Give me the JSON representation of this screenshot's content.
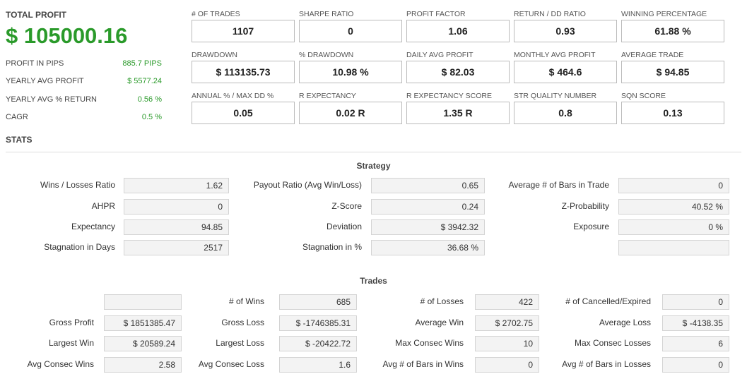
{
  "summary": {
    "title": "TOTAL PROFIT",
    "total": "$ 105000.16",
    "rows": [
      {
        "label": "PROFIT IN PIPS",
        "value": "885.7 PIPS"
      },
      {
        "label": "YEARLY AVG PROFIT",
        "value": "$ 5577.24"
      },
      {
        "label": "YEARLY AVG % RETURN",
        "value": "0.56 %"
      },
      {
        "label": "CAGR",
        "value": "0.5 %"
      }
    ]
  },
  "metrics": [
    [
      {
        "label": "# OF TRADES",
        "value": "1107"
      },
      {
        "label": "SHARPE RATIO",
        "value": "0"
      },
      {
        "label": "PROFIT FACTOR",
        "value": "1.06"
      },
      {
        "label": "RETURN / DD RATIO",
        "value": "0.93"
      },
      {
        "label": "WINNING PERCENTAGE",
        "value": "61.88 %"
      }
    ],
    [
      {
        "label": "DRAWDOWN",
        "value": "$ 113135.73"
      },
      {
        "label": "% DRAWDOWN",
        "value": "10.98 %"
      },
      {
        "label": "DAILY AVG PROFIT",
        "value": "$ 82.03"
      },
      {
        "label": "MONTHLY AVG PROFIT",
        "value": "$ 464.6"
      },
      {
        "label": "AVERAGE TRADE",
        "value": "$ 94.85"
      }
    ],
    [
      {
        "label": "ANNUAL % / MAX DD %",
        "value": "0.05"
      },
      {
        "label": "R EXPECTANCY",
        "value": "0.02 R"
      },
      {
        "label": "R EXPECTANCY SCORE",
        "value": "1.35 R"
      },
      {
        "label": "STR QUALITY NUMBER",
        "value": "0.8"
      },
      {
        "label": "SQN SCORE",
        "value": "0.13"
      }
    ]
  ],
  "stats_heading": "STATS",
  "strategy": {
    "title": "Strategy",
    "rows": [
      [
        {
          "label": "Wins / Losses Ratio",
          "value": "1.62"
        },
        {
          "label": "Payout Ratio (Avg Win/Loss)",
          "value": "0.65"
        },
        {
          "label": "Average # of Bars in Trade",
          "value": "0"
        }
      ],
      [
        {
          "label": "AHPR",
          "value": "0"
        },
        {
          "label": "Z-Score",
          "value": "0.24"
        },
        {
          "label": "Z-Probability",
          "value": "40.52 %"
        }
      ],
      [
        {
          "label": "Expectancy",
          "value": "94.85"
        },
        {
          "label": "Deviation",
          "value": "$ 3942.32"
        },
        {
          "label": "Exposure",
          "value": "0 %"
        }
      ],
      [
        {
          "label": "Stagnation in Days",
          "value": "2517"
        },
        {
          "label": "Stagnation in %",
          "value": "36.68 %"
        },
        {
          "label": null,
          "value": null
        }
      ]
    ]
  },
  "trades": {
    "title": "Trades",
    "rows": [
      [
        {
          "label": null,
          "value": null
        },
        {
          "label": "# of Wins",
          "value": "685"
        },
        {
          "label": "# of Losses",
          "value": "422"
        },
        {
          "label": "# of Cancelled/Expired",
          "value": "0"
        }
      ],
      [
        {
          "label": "Gross Profit",
          "value": "$ 1851385.47"
        },
        {
          "label": "Gross Loss",
          "value": "$ -1746385.31"
        },
        {
          "label": "Average Win",
          "value": "$ 2702.75"
        },
        {
          "label": "Average Loss",
          "value": "$ -4138.35"
        }
      ],
      [
        {
          "label": "Largest Win",
          "value": "$ 20589.24"
        },
        {
          "label": "Largest Loss",
          "value": "$ -20422.72"
        },
        {
          "label": "Max Consec Wins",
          "value": "10"
        },
        {
          "label": "Max Consec Losses",
          "value": "6"
        }
      ],
      [
        {
          "label": "Avg Consec Wins",
          "value": "2.58"
        },
        {
          "label": "Avg Consec Loss",
          "value": "1.6"
        },
        {
          "label": "Avg # of Bars in Wins",
          "value": "0"
        },
        {
          "label": "Avg # of Bars in Losses",
          "value": "0"
        }
      ]
    ]
  }
}
